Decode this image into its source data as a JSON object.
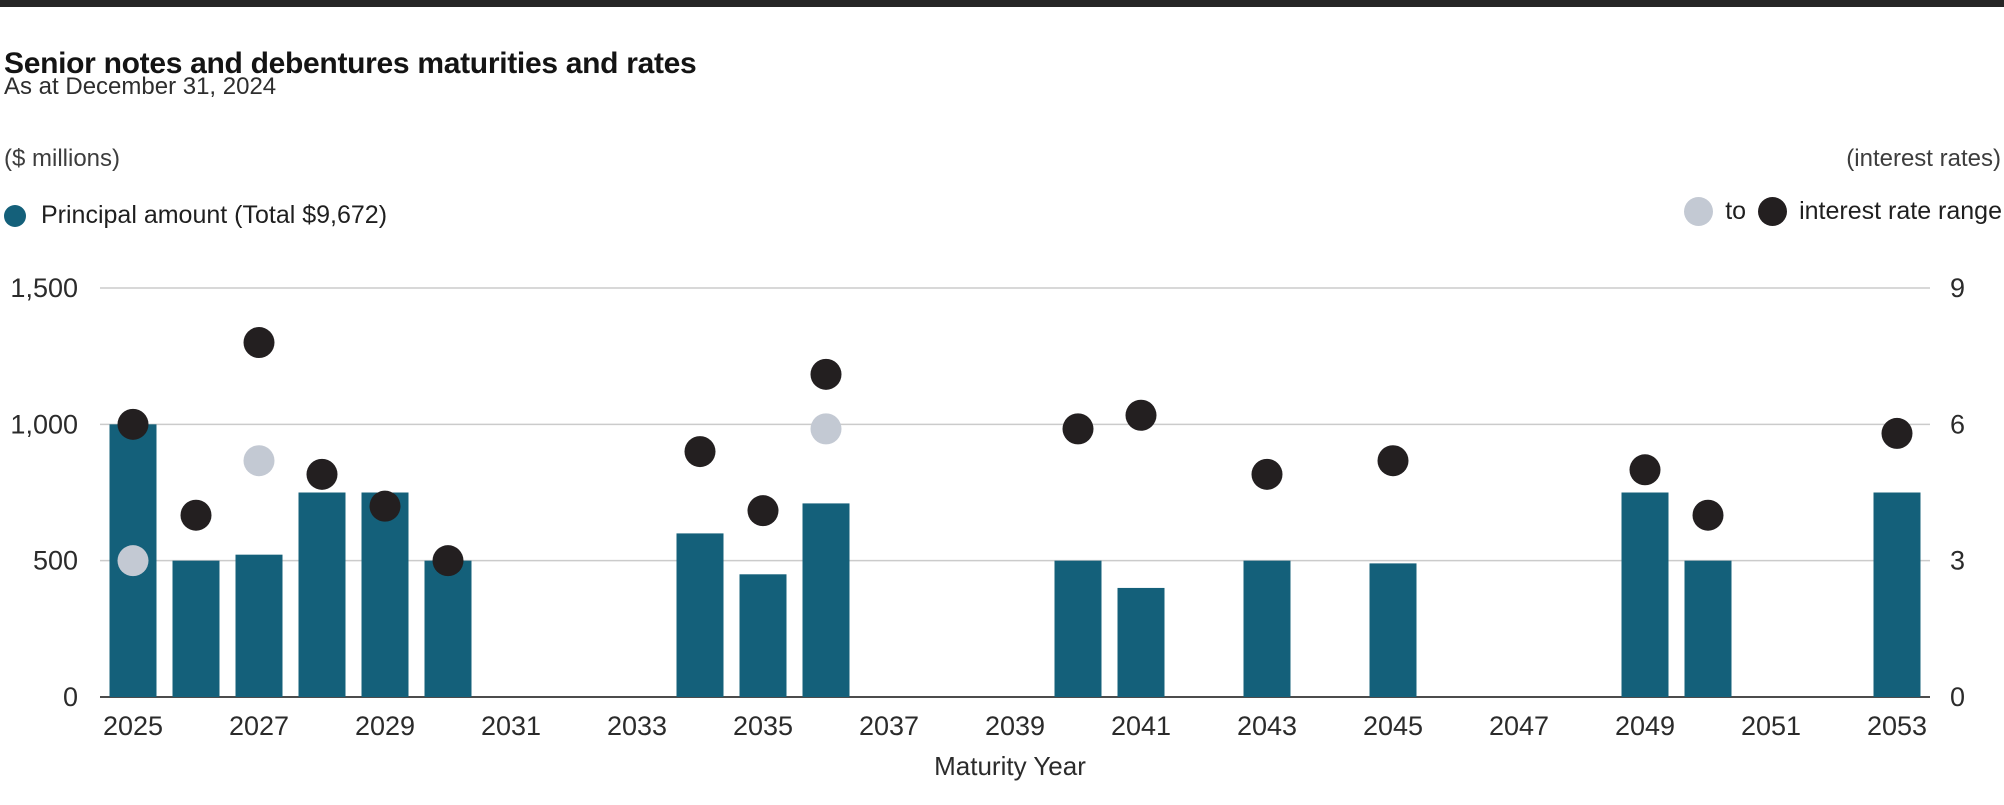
{
  "chart_data": {
    "type": "bar",
    "title": "Senior notes and debentures maturities and rates",
    "subtitle": "As at December 31, 2024",
    "left_axis_label": "($ millions)",
    "right_axis_label": "(interest rates)",
    "xlabel": "Maturity Year",
    "legend": {
      "principal_label": "Principal amount (Total $9,672)",
      "range_separator": "to",
      "range_label": "interest rate range"
    },
    "grid": true,
    "left_ylim": [
      0,
      1500
    ],
    "right_ylim": [
      0,
      9
    ],
    "x_range": [
      2025,
      2053
    ],
    "left_ticks": [
      {
        "value": 0,
        "label": "0"
      },
      {
        "value": 500,
        "label": "500"
      },
      {
        "value": 1000,
        "label": "1,000"
      },
      {
        "value": 1500,
        "label": "1,500"
      }
    ],
    "right_ticks": [
      {
        "value": 0,
        "label": "0"
      },
      {
        "value": 3,
        "label": "3"
      },
      {
        "value": 6,
        "label": "6"
      },
      {
        "value": 9,
        "label": "9"
      }
    ],
    "x_tick_labels": [
      "2025",
      "2027",
      "2029",
      "2031",
      "2033",
      "2035",
      "2037",
      "2039",
      "2041",
      "2043",
      "2045",
      "2047",
      "2049",
      "2051",
      "2053"
    ],
    "series": [
      {
        "year": 2025,
        "principal": 1000,
        "rate_low": 3.0,
        "rate_high": 6.0
      },
      {
        "year": 2026,
        "principal": 500,
        "rate_low": null,
        "rate_high": 4.0
      },
      {
        "year": 2027,
        "principal": 522,
        "rate_low": 5.2,
        "rate_high": 7.8
      },
      {
        "year": 2028,
        "principal": 750,
        "rate_low": null,
        "rate_high": 4.9
      },
      {
        "year": 2029,
        "principal": 750,
        "rate_low": null,
        "rate_high": 4.2
      },
      {
        "year": 2030,
        "principal": 500,
        "rate_low": null,
        "rate_high": 3.0
      },
      {
        "year": 2034,
        "principal": 600,
        "rate_low": null,
        "rate_high": 5.4
      },
      {
        "year": 2035,
        "principal": 450,
        "rate_low": null,
        "rate_high": 4.1
      },
      {
        "year": 2036,
        "principal": 710,
        "rate_low": 5.9,
        "rate_high": 7.1
      },
      {
        "year": 2040,
        "principal": 500,
        "rate_low": null,
        "rate_high": 5.9
      },
      {
        "year": 2041,
        "principal": 400,
        "rate_low": null,
        "rate_high": 6.2
      },
      {
        "year": 2043,
        "principal": 500,
        "rate_low": null,
        "rate_high": 4.9
      },
      {
        "year": 2045,
        "principal": 490,
        "rate_low": null,
        "rate_high": 5.2
      },
      {
        "year": 2049,
        "principal": 750,
        "rate_low": null,
        "rate_high": 5.0
      },
      {
        "year": 2050,
        "principal": 500,
        "rate_low": null,
        "rate_high": 4.0
      },
      {
        "year": 2053,
        "principal": 750,
        "rate_low": null,
        "rate_high": 5.8
      }
    ],
    "colors": {
      "bar": "#14607A",
      "rate_high_dot": "#231F20",
      "rate_low_dot": "#C3C9D3",
      "gridline": "#cbcbcb",
      "axis_line": "#4c4c4c",
      "tick_text": "#2b2b2b"
    }
  }
}
